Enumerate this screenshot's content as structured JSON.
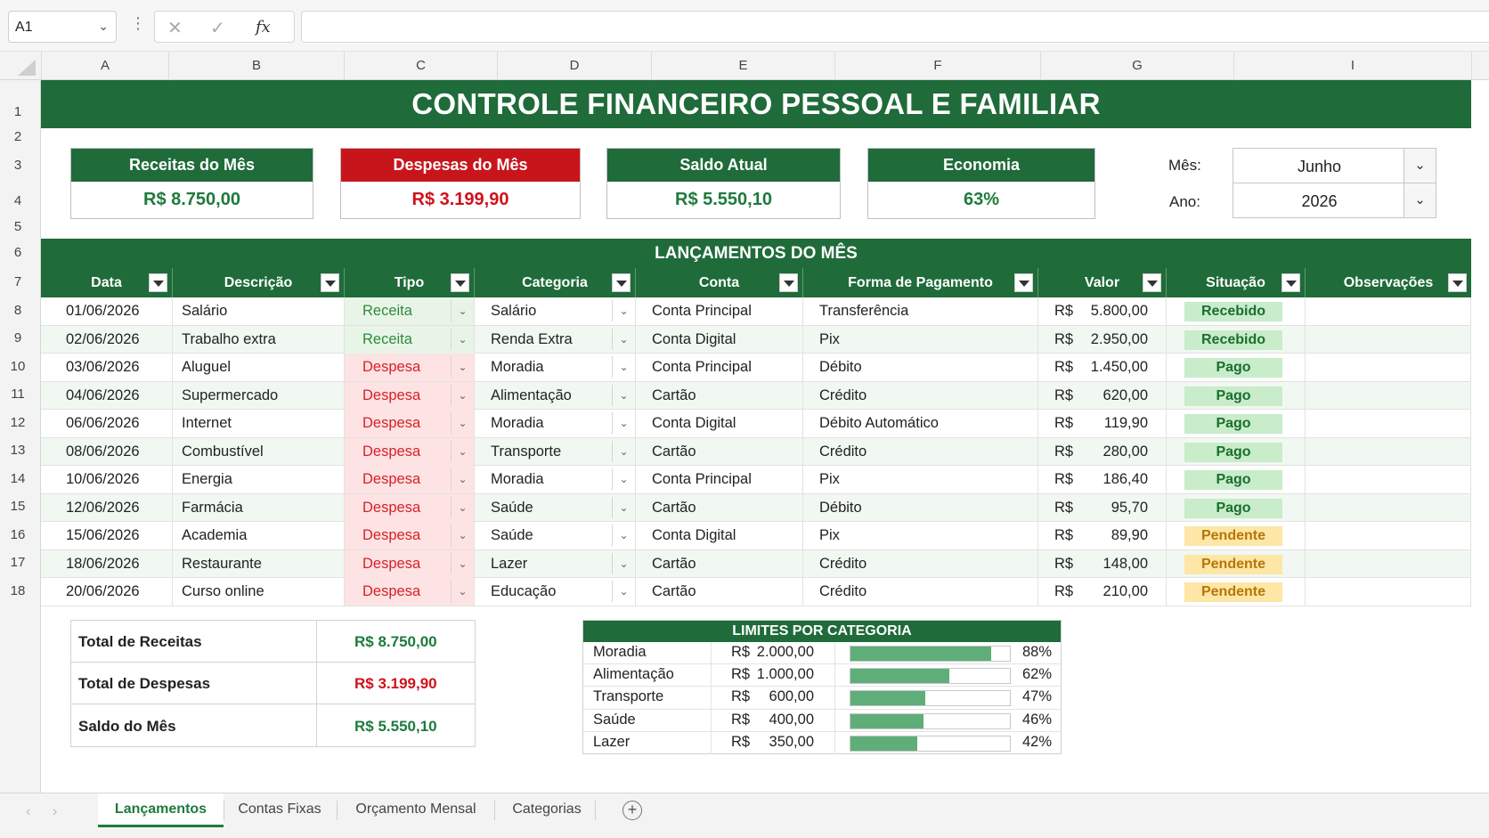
{
  "formula_bar": {
    "name_box": "A1",
    "fx": "fx",
    "content": ""
  },
  "columns": [
    "A",
    "B",
    "C",
    "D",
    "E",
    "F",
    "G",
    "I"
  ],
  "rows": [
    "1",
    "2",
    "3",
    "4",
    "5",
    "6",
    "7",
    "8",
    "9",
    "10",
    "11",
    "12",
    "13",
    "14",
    "15",
    "16",
    "17",
    "18"
  ],
  "title": "CONTROLE FINANCEIRO PESSOAL E FAMILIAR",
  "kpis": [
    {
      "label": "Receitas do Mês",
      "value": "R$ 8.750,00",
      "header_color": "#1f6b3a",
      "value_color": "#1f7a3d"
    },
    {
      "label": "Despesas do Mês",
      "value": "R$ 3.199,90",
      "header_color": "#c8151b",
      "value_color": "#d0121b"
    },
    {
      "label": "Saldo Atual",
      "value": "R$ 5.550,10",
      "header_color": "#1f6b3a",
      "value_color": "#1f7a3d"
    },
    {
      "label": "Economia",
      "value": "63%",
      "header_color": "#1f6b3a",
      "value_color": "#1f7a3d"
    }
  ],
  "period": {
    "month_label": "Mês:",
    "month_value": "Junho",
    "year_label": "Ano:",
    "year_value": "2026"
  },
  "section_title": "LANÇAMENTOS DO MÊS",
  "table": {
    "headers": [
      "Data",
      "Descrição",
      "Tipo",
      "Categoria",
      "Conta",
      "Forma de Pagamento",
      "Valor",
      "Situação",
      "Observações"
    ],
    "currency": "R$",
    "rows": [
      {
        "data": "01/06/2026",
        "descricao": "Salário",
        "tipo": "Receita",
        "categoria": "Salário",
        "conta": "Conta Principal",
        "forma": "Transferência",
        "valor": "5.800,00",
        "situacao": "Recebido",
        "obs": ""
      },
      {
        "data": "02/06/2026",
        "descricao": "Trabalho extra",
        "tipo": "Receita",
        "categoria": "Renda Extra",
        "conta": "Conta Digital",
        "forma": "Pix",
        "valor": "2.950,00",
        "situacao": "Recebido",
        "obs": ""
      },
      {
        "data": "03/06/2026",
        "descricao": "Aluguel",
        "tipo": "Despesa",
        "categoria": "Moradia",
        "conta": "Conta Principal",
        "forma": "Débito",
        "valor": "1.450,00",
        "situacao": "Pago",
        "obs": ""
      },
      {
        "data": "04/06/2026",
        "descricao": "Supermercado",
        "tipo": "Despesa",
        "categoria": "Alimentação",
        "conta": "Cartão",
        "forma": "Crédito",
        "valor": "620,00",
        "situacao": "Pago",
        "obs": ""
      },
      {
        "data": "06/06/2026",
        "descricao": "Internet",
        "tipo": "Despesa",
        "categoria": "Moradia",
        "conta": "Conta Digital",
        "forma": "Débito Automático",
        "valor": "119,90",
        "situacao": "Pago",
        "obs": ""
      },
      {
        "data": "08/06/2026",
        "descricao": "Combustível",
        "tipo": "Despesa",
        "categoria": "Transporte",
        "conta": "Cartão",
        "forma": "Crédito",
        "valor": "280,00",
        "situacao": "Pago",
        "obs": ""
      },
      {
        "data": "10/06/2026",
        "descricao": "Energia",
        "tipo": "Despesa",
        "categoria": "Moradia",
        "conta": "Conta Principal",
        "forma": "Pix",
        "valor": "186,40",
        "situacao": "Pago",
        "obs": ""
      },
      {
        "data": "12/06/2026",
        "descricao": "Farmácia",
        "tipo": "Despesa",
        "categoria": "Saúde",
        "conta": "Cartão",
        "forma": "Débito",
        "valor": "95,70",
        "situacao": "Pago",
        "obs": ""
      },
      {
        "data": "15/06/2026",
        "descricao": "Academia",
        "tipo": "Despesa",
        "categoria": "Saúde",
        "conta": "Conta Digital",
        "forma": "Pix",
        "valor": "89,90",
        "situacao": "Pendente",
        "obs": ""
      },
      {
        "data": "18/06/2026",
        "descricao": "Restaurante",
        "tipo": "Despesa",
        "categoria": "Lazer",
        "conta": "Cartão",
        "forma": "Crédito",
        "valor": "148,00",
        "situacao": "Pendente",
        "obs": ""
      },
      {
        "data": "20/06/2026",
        "descricao": "Curso online",
        "tipo": "Despesa",
        "categoria": "Educação",
        "conta": "Cartão",
        "forma": "Crédito",
        "valor": "210,00",
        "situacao": "Pendente",
        "obs": ""
      }
    ]
  },
  "totals": [
    {
      "label": "Total de Receitas",
      "value": "R$ 8.750,00",
      "color": "#1f7a3d"
    },
    {
      "label": "Total de Despesas",
      "value": "R$ 3.199,90",
      "color": "#d0121b"
    },
    {
      "label": "Saldo do Mês",
      "value": "R$ 5.550,10",
      "color": "#1f7a3d"
    }
  ],
  "limits": {
    "title": "LIMITES POR CATEGORIA",
    "currency": "R$",
    "rows": [
      {
        "name": "Moradia",
        "amount": "2.000,00",
        "pct": "88%",
        "fill": 0.88
      },
      {
        "name": "Alimentação",
        "amount": "1.000,00",
        "pct": "62%",
        "fill": 0.62
      },
      {
        "name": "Transporte",
        "amount": "600,00",
        "pct": "47%",
        "fill": 0.47
      },
      {
        "name": "Saúde",
        "amount": "400,00",
        "pct": "46%",
        "fill": 0.46
      },
      {
        "name": "Lazer",
        "amount": "350,00",
        "pct": "42%",
        "fill": 0.42
      }
    ]
  },
  "sheet_tabs": [
    {
      "label": "Lançamentos",
      "active": true
    },
    {
      "label": "Contas Fixas",
      "active": false
    },
    {
      "label": "Orçamento Mensal",
      "active": false
    },
    {
      "label": "Categorias",
      "active": false
    }
  ],
  "colors": {
    "brand_green": "#1f6b3a",
    "expense_red": "#c8151b",
    "paid_badge": "#c9eccb",
    "pending_badge": "#fde6a6"
  }
}
